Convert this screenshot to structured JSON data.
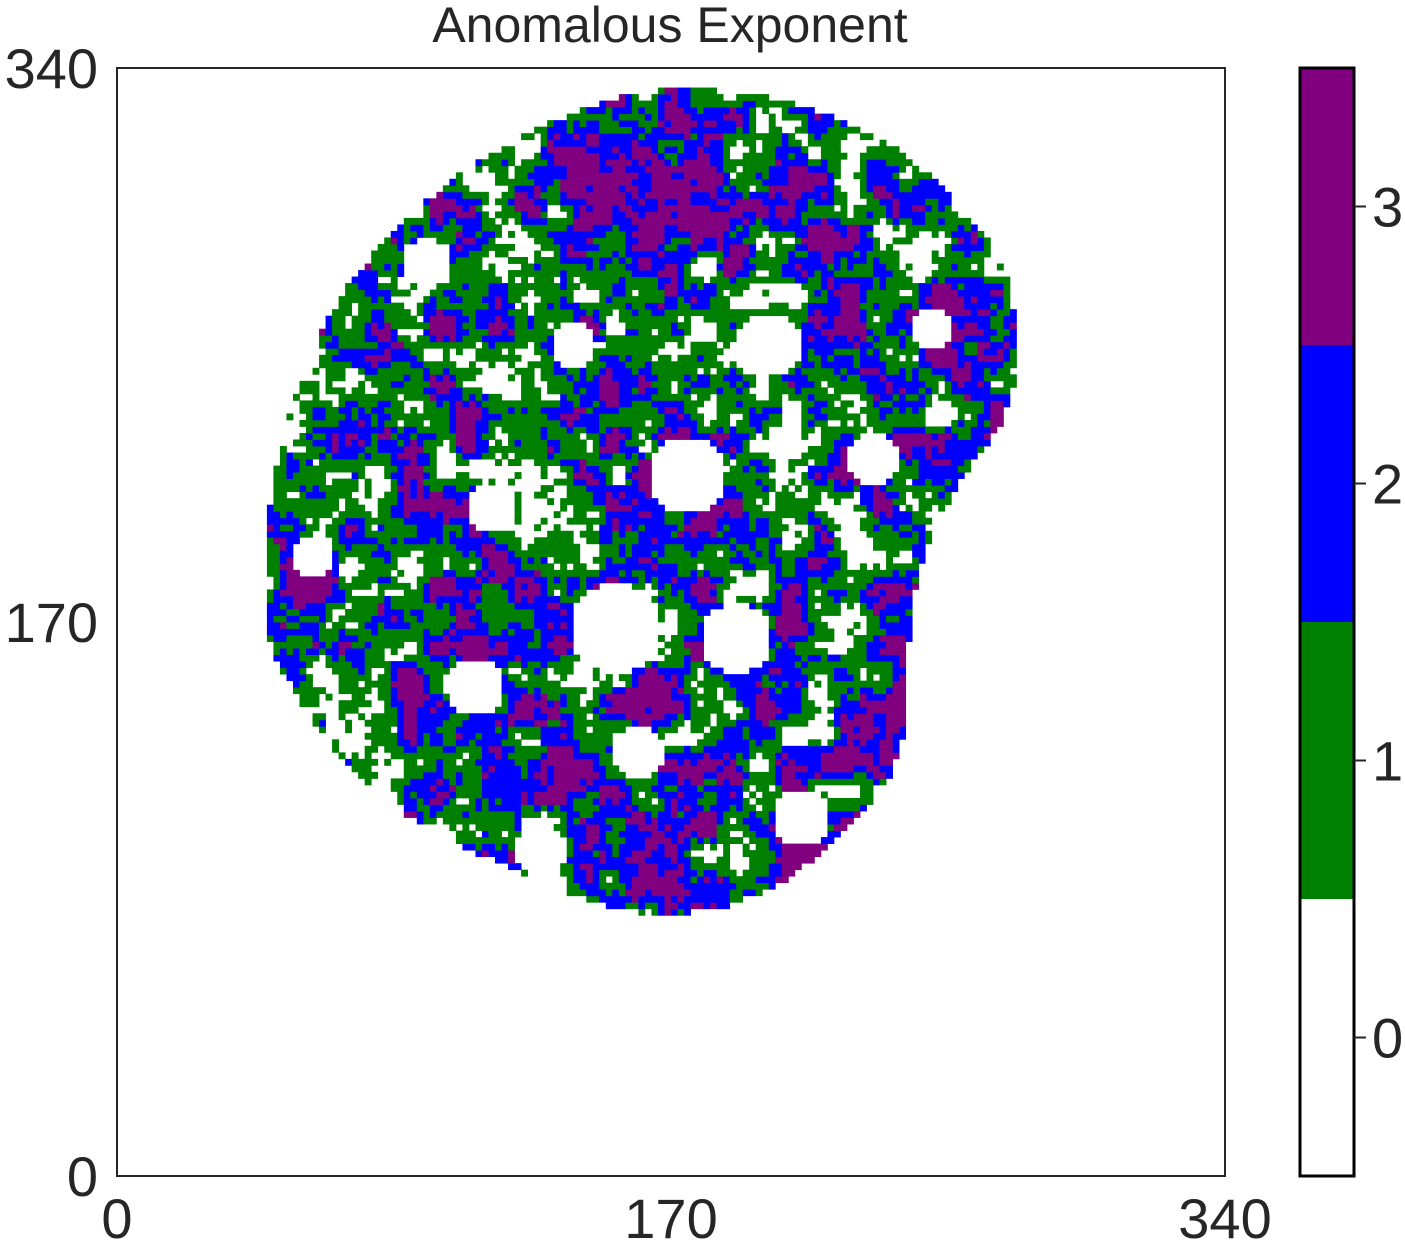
{
  "chart_data": {
    "type": "heatmap",
    "title": "Anomalous Exponent",
    "xlabel": "",
    "ylabel": "",
    "xlim": [
      0,
      340
    ],
    "ylim": [
      0,
      340
    ],
    "x_ticks": [
      "0",
      "170",
      "340"
    ],
    "y_ticks": [
      "0",
      "170",
      "340"
    ],
    "colorbar": {
      "ticks": [
        "0",
        "1",
        "2",
        "3"
      ],
      "range": [
        -0.5,
        3.5
      ],
      "levels": [
        {
          "value": 0,
          "color": "#ffffff"
        },
        {
          "value": 1,
          "color": "#008000"
        },
        {
          "value": 2,
          "color": "#0000ff"
        },
        {
          "value": 3,
          "color": "#800080"
        }
      ]
    },
    "region": {
      "description_free": true,
      "boundary": [
        [
          45,
          170
        ],
        [
          46,
          195
        ],
        [
          48,
          215
        ],
        [
          53,
          235
        ],
        [
          60,
          255
        ],
        [
          70,
          272
        ],
        [
          82,
          287
        ],
        [
          96,
          300
        ],
        [
          110,
          311
        ],
        [
          126,
          320
        ],
        [
          142,
          327
        ],
        [
          158,
          332
        ],
        [
          174,
          334
        ],
        [
          190,
          333
        ],
        [
          206,
          330
        ],
        [
          222,
          324
        ],
        [
          238,
          316
        ],
        [
          252,
          305
        ],
        [
          265,
          291
        ],
        [
          273,
          276
        ],
        [
          276,
          260
        ],
        [
          276,
          245
        ],
        [
          272,
          232
        ],
        [
          265,
          222
        ],
        [
          258,
          212
        ],
        [
          251,
          200
        ],
        [
          247,
          188
        ],
        [
          244,
          176
        ],
        [
          243,
          163
        ],
        [
          243,
          150
        ],
        [
          242,
          138
        ],
        [
          238,
          124
        ],
        [
          230,
          112
        ],
        [
          218,
          100
        ],
        [
          204,
          90
        ],
        [
          188,
          83
        ],
        [
          170,
          80
        ],
        [
          152,
          82
        ],
        [
          136,
          88
        ],
        [
          120,
          95
        ],
        [
          104,
          102
        ],
        [
          90,
          110
        ],
        [
          78,
          120
        ],
        [
          66,
          132
        ],
        [
          56,
          146
        ],
        [
          49,
          158
        ]
      ],
      "empty_patches": [
        [
          175,
          215,
          12
        ],
        [
          153,
          168,
          14
        ],
        [
          190,
          165,
          11
        ],
        [
          200,
          255,
          10
        ],
        [
          110,
          150,
          9
        ],
        [
          232,
          220,
          8
        ],
        [
          95,
          280,
          8
        ],
        [
          60,
          190,
          7
        ],
        [
          130,
          100,
          8
        ],
        [
          210,
          110,
          9
        ],
        [
          250,
          260,
          7
        ],
        [
          80,
          110,
          8
        ],
        [
          140,
          255,
          7
        ],
        [
          160,
          130,
          8
        ],
        [
          115,
          205,
          8
        ]
      ]
    }
  }
}
